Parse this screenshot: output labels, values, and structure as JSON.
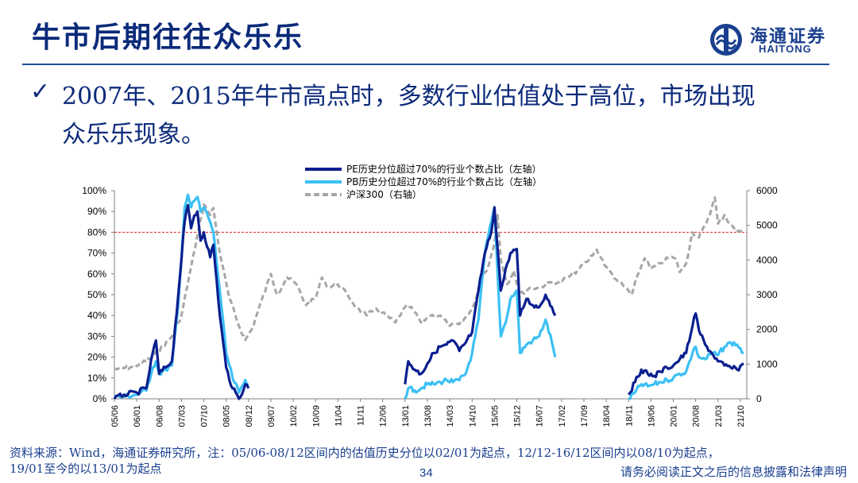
{
  "slide": {
    "title": "牛市后期往往众乐乐",
    "bullet_mark": "✓",
    "bullet_line1": "2007年、2015年牛市高点时，多数行业估值处于高位，市场出现",
    "bullet_line2": "众乐乐现象。",
    "logo_cn": "海通证券",
    "logo_en": "HAITONG",
    "footer_line1": "资料来源：Wind，海通证券研究所，注：05/06-08/12区间内的估值历史分位以02/01为起点，12/12-16/12区间内以08/10为起点，",
    "footer_line2": "19/01至今的以13/01为起点",
    "page_number": "34",
    "disclaimer": "请务必阅读正文之后的信息披露和法律声明"
  },
  "colors": {
    "title": "#0b2a7a",
    "pe_series": "#0a1f8f",
    "pb_series": "#3cc0f5",
    "hs300_series": "#a6a6a6",
    "reference_line": "#e02020"
  },
  "chart_data": {
    "type": "line",
    "x_tick_labels": [
      "05/06",
      "06/01",
      "06/08",
      "07/03",
      "07/10",
      "08/05",
      "08/12",
      "09/07",
      "10/02",
      "10/09",
      "11/04",
      "11/11",
      "12/06",
      "13/01",
      "13/08",
      "14/03",
      "14/10",
      "15/05",
      "15/12",
      "16/07",
      "17/02",
      "17/09",
      "18/04",
      "18/11",
      "19/06",
      "20/01",
      "20/08",
      "21/03",
      "21/10"
    ],
    "left_axis": {
      "min": 0,
      "max": 100,
      "ticks": [
        "0%",
        "10%",
        "20%",
        "30%",
        "40%",
        "50%",
        "60%",
        "70%",
        "80%",
        "90%",
        "100%"
      ]
    },
    "right_axis": {
      "min": 0,
      "max": 6000,
      "ticks": [
        "0",
        "1000",
        "2000",
        "3000",
        "4000",
        "5000",
        "6000"
      ]
    },
    "reference_line": {
      "axis": "left",
      "value": 80
    },
    "legend_position": "top",
    "grid": false,
    "series": [
      {
        "name": "PE历史分位超过70%的行业个数占比（左轴）",
        "axis": "left",
        "style": "solid",
        "segments": [
          [
            [
              "05/06",
              0
            ],
            [
              "05/09",
              2
            ],
            [
              "06/01",
              3
            ],
            [
              "06/04",
              5
            ],
            [
              "06/06",
              22
            ],
            [
              "06/07",
              28
            ],
            [
              "06/08",
              12
            ],
            [
              "06/10",
              15
            ],
            [
              "06/12",
              18
            ],
            [
              "07/02",
              50
            ],
            [
              "07/04",
              85
            ],
            [
              "07/05",
              93
            ],
            [
              "07/06",
              82
            ],
            [
              "07/07",
              88
            ],
            [
              "07/08",
              90
            ],
            [
              "07/09",
              76
            ],
            [
              "07/10",
              80
            ],
            [
              "07/12",
              68
            ],
            [
              "08/01",
              74
            ],
            [
              "08/03",
              40
            ],
            [
              "08/05",
              15
            ],
            [
              "08/07",
              5
            ],
            [
              "08/09",
              0
            ],
            [
              "08/11",
              7
            ],
            [
              "08/12",
              5
            ]
          ],
          [
            [
              "13/01",
              7
            ],
            [
              "13/02",
              18
            ],
            [
              "13/04",
              14
            ],
            [
              "13/06",
              12
            ],
            [
              "13/08",
              17
            ],
            [
              "13/10",
              22
            ],
            [
              "13/12",
              25
            ],
            [
              "14/02",
              26
            ],
            [
              "14/04",
              28
            ],
            [
              "14/06",
              23
            ],
            [
              "14/08",
              27
            ],
            [
              "14/10",
              32
            ],
            [
              "14/12",
              52
            ],
            [
              "15/02",
              70
            ],
            [
              "15/04",
              80
            ],
            [
              "15/05",
              92
            ],
            [
              "15/06",
              72
            ],
            [
              "15/07",
              52
            ],
            [
              "15/09",
              65
            ],
            [
              "15/10",
              70
            ],
            [
              "15/12",
              72
            ],
            [
              "16/01",
              40
            ],
            [
              "16/03",
              48
            ],
            [
              "16/05",
              45
            ],
            [
              "16/07",
              44
            ],
            [
              "16/09",
              50
            ],
            [
              "16/11",
              44
            ],
            [
              "16/12",
              40
            ]
          ],
          [
            [
              "18/11",
              2
            ],
            [
              "19/01",
              8
            ],
            [
              "19/03",
              14
            ],
            [
              "19/05",
              12
            ],
            [
              "19/07",
              11
            ],
            [
              "19/09",
              13
            ],
            [
              "19/11",
              15
            ],
            [
              "20/01",
              16
            ],
            [
              "20/03",
              19
            ],
            [
              "20/05",
              22
            ],
            [
              "20/07",
              35
            ],
            [
              "20/08",
              41
            ],
            [
              "20/09",
              33
            ],
            [
              "20/11",
              26
            ],
            [
              "21/01",
              22
            ],
            [
              "21/03",
              18
            ],
            [
              "21/05",
              16
            ],
            [
              "21/07",
              15
            ],
            [
              "21/09",
              14
            ],
            [
              "21/11",
              17
            ]
          ]
        ]
      },
      {
        "name": "PB历史分位超过70%的行业个数占比（左轴）",
        "axis": "left",
        "style": "solid",
        "segments": [
          [
            [
              "05/06",
              1
            ],
            [
              "05/09",
              1
            ],
            [
              "06/01",
              2
            ],
            [
              "06/04",
              4
            ],
            [
              "06/06",
              15
            ],
            [
              "06/07",
              18
            ],
            [
              "06/08",
              12
            ],
            [
              "06/10",
              14
            ],
            [
              "06/12",
              16
            ],
            [
              "07/02",
              45
            ],
            [
              "07/04",
              92
            ],
            [
              "07/05",
              98
            ],
            [
              "07/06",
              92
            ],
            [
              "07/07",
              95
            ],
            [
              "07/08",
              97
            ],
            [
              "07/09",
              90
            ],
            [
              "07/10",
              92
            ],
            [
              "07/12",
              85
            ],
            [
              "08/01",
              80
            ],
            [
              "08/03",
              52
            ],
            [
              "08/05",
              22
            ],
            [
              "08/07",
              10
            ],
            [
              "08/09",
              3
            ],
            [
              "08/11",
              9
            ],
            [
              "08/12",
              7
            ]
          ],
          [
            [
              "13/01",
              0
            ],
            [
              "13/02",
              5
            ],
            [
              "13/04",
              4
            ],
            [
              "13/06",
              5
            ],
            [
              "13/08",
              7
            ],
            [
              "13/10",
              7
            ],
            [
              "13/12",
              8
            ],
            [
              "14/02",
              9
            ],
            [
              "14/04",
              8
            ],
            [
              "14/06",
              9
            ],
            [
              "14/08",
              12
            ],
            [
              "14/10",
              22
            ],
            [
              "14/12",
              38
            ],
            [
              "15/02",
              70
            ],
            [
              "15/04",
              85
            ],
            [
              "15/05",
              92
            ],
            [
              "15/06",
              60
            ],
            [
              "15/07",
              30
            ],
            [
              "15/09",
              40
            ],
            [
              "15/10",
              48
            ],
            [
              "15/12",
              52
            ],
            [
              "16/01",
              22
            ],
            [
              "16/03",
              26
            ],
            [
              "16/05",
              28
            ],
            [
              "16/07",
              30
            ],
            [
              "16/09",
              38
            ],
            [
              "16/11",
              27
            ],
            [
              "16/12",
              20
            ]
          ],
          [
            [
              "18/11",
              0
            ],
            [
              "19/01",
              3
            ],
            [
              "19/03",
              7
            ],
            [
              "19/05",
              6
            ],
            [
              "19/07",
              7
            ],
            [
              "19/09",
              8
            ],
            [
              "19/11",
              9
            ],
            [
              "20/01",
              10
            ],
            [
              "20/03",
              12
            ],
            [
              "20/05",
              13
            ],
            [
              "20/07",
              22
            ],
            [
              "20/08",
              25
            ],
            [
              "20/09",
              20
            ],
            [
              "20/11",
              19
            ],
            [
              "21/01",
              22
            ],
            [
              "21/03",
              21
            ],
            [
              "21/05",
              25
            ],
            [
              "21/07",
              27
            ],
            [
              "21/09",
              26
            ],
            [
              "21/11",
              22
            ]
          ]
        ]
      },
      {
        "name": "沪深300（右轴）",
        "axis": "right",
        "style": "dashed",
        "segments": [
          [
            [
              "05/06",
              850
            ],
            [
              "05/12",
              920
            ],
            [
              "06/06",
              1200
            ],
            [
              "06/12",
              1800
            ],
            [
              "07/03",
              2400
            ],
            [
              "07/06",
              3800
            ],
            [
              "07/10",
              5600
            ],
            [
              "07/12",
              5300
            ],
            [
              "08/01",
              5500
            ],
            [
              "08/03",
              4200
            ],
            [
              "08/06",
              2900
            ],
            [
              "08/09",
              2100
            ],
            [
              "08/11",
              1700
            ],
            [
              "09/01",
              2000
            ],
            [
              "09/04",
              2800
            ],
            [
              "09/07",
              3600
            ],
            [
              "09/09",
              3000
            ],
            [
              "09/12",
              3500
            ],
            [
              "10/03",
              3300
            ],
            [
              "10/06",
              2700
            ],
            [
              "10/09",
              2900
            ],
            [
              "10/11",
              3500
            ],
            [
              "11/01",
              3200
            ],
            [
              "11/04",
              3300
            ],
            [
              "11/07",
              3000
            ],
            [
              "11/10",
              2600
            ],
            [
              "12/01",
              2400
            ],
            [
              "12/04",
              2600
            ],
            [
              "12/07",
              2400
            ],
            [
              "12/10",
              2200
            ],
            [
              "12/12",
              2500
            ],
            [
              "13/02",
              2700
            ],
            [
              "13/04",
              2500
            ],
            [
              "13/06",
              2200
            ],
            [
              "13/09",
              2400
            ],
            [
              "13/12",
              2400
            ],
            [
              "14/03",
              2100
            ],
            [
              "14/06",
              2150
            ],
            [
              "14/09",
              2450
            ],
            [
              "14/11",
              2800
            ],
            [
              "15/01",
              3500
            ],
            [
              "15/03",
              3800
            ],
            [
              "15/05",
              4500
            ],
            [
              "15/06",
              5300
            ],
            [
              "15/07",
              4000
            ],
            [
              "15/09",
              3300
            ],
            [
              "15/11",
              3700
            ],
            [
              "16/01",
              3000
            ],
            [
              "16/04",
              3200
            ],
            [
              "16/07",
              3200
            ],
            [
              "16/10",
              3350
            ],
            [
              "17/01",
              3350
            ],
            [
              "17/04",
              3500
            ],
            [
              "17/07",
              3700
            ],
            [
              "17/10",
              3950
            ],
            [
              "18/01",
              4300
            ],
            [
              "18/04",
              3800
            ],
            [
              "18/07",
              3450
            ],
            [
              "18/10",
              3200
            ],
            [
              "18/12",
              3000
            ],
            [
              "19/02",
              3600
            ],
            [
              "19/04",
              4050
            ],
            [
              "19/06",
              3750
            ],
            [
              "19/09",
              3900
            ],
            [
              "19/12",
              4100
            ],
            [
              "20/02",
              4000
            ],
            [
              "20/03",
              3650
            ],
            [
              "20/05",
              3900
            ],
            [
              "20/07",
              4800
            ],
            [
              "20/09",
              4650
            ],
            [
              "20/11",
              5000
            ],
            [
              "21/01",
              5500
            ],
            [
              "21/02",
              5800
            ],
            [
              "21/03",
              5050
            ],
            [
              "21/05",
              5300
            ],
            [
              "21/07",
              5000
            ],
            [
              "21/09",
              4850
            ],
            [
              "21/11",
              4900
            ]
          ]
        ]
      }
    ]
  }
}
